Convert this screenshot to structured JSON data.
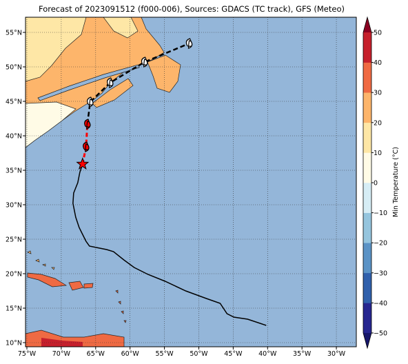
{
  "map": {
    "title": "Forecast of 2023091512 (f000-006), Sources: GDACS (TC track), GFS (Meteo)",
    "lonlim": [
      -75.2,
      -27.1
    ],
    "latlim": [
      9.4,
      57.2
    ],
    "xticks": [
      {
        "value": -75,
        "label": "75°W"
      },
      {
        "value": -70,
        "label": "70°W"
      },
      {
        "value": -65,
        "label": "65°W"
      },
      {
        "value": -60,
        "label": "60°W"
      },
      {
        "value": -55,
        "label": "55°W"
      },
      {
        "value": -50,
        "label": "50°W"
      },
      {
        "value": -45,
        "label": "45°W"
      },
      {
        "value": -40,
        "label": "40°W"
      },
      {
        "value": -35,
        "label": "35°W"
      },
      {
        "value": -30,
        "label": "30°W"
      }
    ],
    "yticks": [
      {
        "value": 10,
        "label": "10°N"
      },
      {
        "value": 15,
        "label": "15°N"
      },
      {
        "value": 20,
        "label": "20°N"
      },
      {
        "value": 25,
        "label": "25°N"
      },
      {
        "value": 30,
        "label": "30°N"
      },
      {
        "value": 35,
        "label": "35°N"
      },
      {
        "value": 40,
        "label": "40°N"
      },
      {
        "value": 45,
        "label": "45°N"
      },
      {
        "value": 50,
        "label": "50°N"
      },
      {
        "value": 55,
        "label": "55°N"
      }
    ],
    "grid": true,
    "ocean_color": "#94b6d9",
    "track": {
      "lon": [
        -40.2,
        -42.9,
        -44.9,
        -45.9,
        -46.9,
        -48.9,
        -51.9,
        -54.9,
        -57.4,
        -59.4,
        -60.9,
        -62.4,
        -63.4,
        -64.4,
        -65.9,
        -66.4,
        -66.9,
        -67.4,
        -67.9,
        -68.3,
        -68.2,
        -67.6,
        -67.3,
        -66.9
      ],
      "lat": [
        12.5,
        13.4,
        13.7,
        14.2,
        15.7,
        16.4,
        17.5,
        18.9,
        19.9,
        20.9,
        22.0,
        23.2,
        23.5,
        23.7,
        24.0,
        24.7,
        25.7,
        26.7,
        28.2,
        30.2,
        31.7,
        33.2,
        34.7,
        35.9
      ],
      "color": "#000000"
    },
    "forecast": {
      "lon": [
        -66.9,
        -66.4,
        -66.2,
        -65.8,
        -62.9,
        -57.9,
        -51.4
      ],
      "lat": [
        35.9,
        38.4,
        41.7,
        44.9,
        47.7,
        50.7,
        53.4
      ],
      "colors": [
        "#ff0000",
        "#ff0000",
        "#ff0000",
        "#ffffff",
        "#ffffff",
        "#ffffff",
        "#ffffff"
      ]
    },
    "colorbar": {
      "label": "Min Temperature (°C)",
      "lim": [
        -50,
        50
      ],
      "ticks": [
        {
          "value": -50,
          "label": "−50"
        },
        {
          "value": -40,
          "label": "−40"
        },
        {
          "value": -30,
          "label": "−30"
        },
        {
          "value": -20,
          "label": "−20"
        },
        {
          "value": -10,
          "label": "−10"
        },
        0,
        10,
        20,
        30,
        40,
        50
      ],
      "colors": [
        "#262690",
        "#3060ac",
        "#5b93c6",
        "#95c5de",
        "#d6edf5",
        "#fffbe6",
        "#fee7a6",
        "#fdb56b",
        "#ef6a43",
        "#c6202c"
      ],
      "under": "#16166a",
      "over": "#8a0021"
    }
  }
}
